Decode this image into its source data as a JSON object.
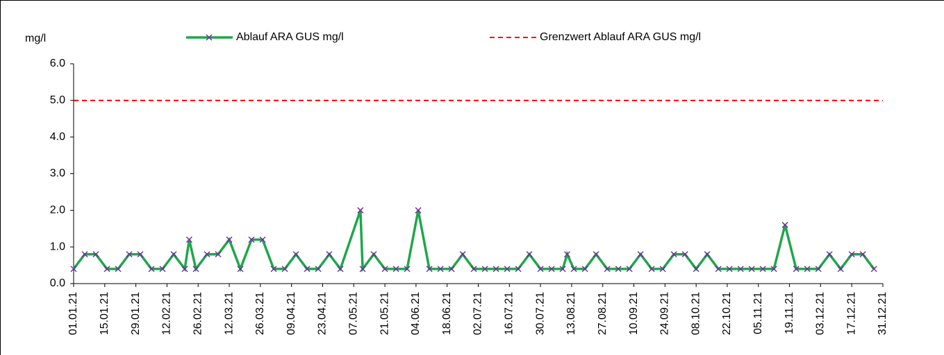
{
  "chart_data": {
    "type": "line",
    "ylabel": "mg/l",
    "xlim": [
      "01.01.21",
      "31.12.21"
    ],
    "xticks": [
      "01.01.21",
      "15.01.21",
      "29.01.21",
      "12.02.21",
      "26.02.21",
      "12.03.21",
      "26.03.21",
      "09.04.21",
      "23.04.21",
      "07.05.21",
      "21.05.21",
      "04.06.21",
      "18.06.21",
      "02.07.21",
      "16.07.21",
      "30.07.21",
      "13.08.21",
      "27.08.21",
      "10.09.21",
      "24.09.21",
      "08.10.21",
      "22.10.21",
      "05.11.21",
      "19.11.21",
      "03.12.21",
      "17.12.21",
      "31.12.21"
    ],
    "ylim": [
      0,
      6
    ],
    "yticks": [
      {
        "value": 0,
        "label": "0.0"
      },
      {
        "value": 1,
        "label": "1.0"
      },
      {
        "value": 2,
        "label": "2.0"
      },
      {
        "value": 3,
        "label": "3.0"
      },
      {
        "value": 4,
        "label": "4.0"
      },
      {
        "value": 5,
        "label": "5.0"
      },
      {
        "value": 6,
        "label": "6.0"
      }
    ],
    "series": [
      {
        "name": "Ablauf ARA GUS mg/l",
        "color": "#1fa64a",
        "marker_color": "#7030a0",
        "x": [
          "01.01.21",
          "06.01.21",
          "11.01.21",
          "16.01.21",
          "21.01.21",
          "26.01.21",
          "31.01.21",
          "05.02.21",
          "10.02.21",
          "15.02.21",
          "20.02.21",
          "22.02.21",
          "25.02.21",
          "02.03.21",
          "07.03.21",
          "12.03.21",
          "17.03.21",
          "22.03.21",
          "27.03.21",
          "01.04.21",
          "06.04.21",
          "11.04.21",
          "16.04.21",
          "21.04.21",
          "26.04.21",
          "01.05.21",
          "10.05.21",
          "11.05.21",
          "16.05.21",
          "21.05.21",
          "26.05.21",
          "31.05.21",
          "05.06.21",
          "10.06.21",
          "15.06.21",
          "20.06.21",
          "25.06.21",
          "30.06.21",
          "05.07.21",
          "10.07.21",
          "15.07.21",
          "20.07.21",
          "25.07.21",
          "30.07.21",
          "04.08.21",
          "09.08.21",
          "11.08.21",
          "14.08.21",
          "19.08.21",
          "24.08.21",
          "29.08.21",
          "03.09.21",
          "08.09.21",
          "13.09.21",
          "18.09.21",
          "23.09.21",
          "28.09.21",
          "03.10.21",
          "08.10.21",
          "13.10.21",
          "18.10.21",
          "23.10.21",
          "28.10.21",
          "02.11.21",
          "07.11.21",
          "12.11.21",
          "17.11.21",
          "22.11.21",
          "27.11.21",
          "02.12.21",
          "07.12.21",
          "12.12.21",
          "17.12.21",
          "22.12.21",
          "27.12.21"
        ],
        "values": [
          0.4,
          0.8,
          0.8,
          0.4,
          0.4,
          0.8,
          0.8,
          0.4,
          0.4,
          0.8,
          0.4,
          1.2,
          0.4,
          0.8,
          0.8,
          1.2,
          0.4,
          1.2,
          1.2,
          0.4,
          0.4,
          0.8,
          0.4,
          0.4,
          0.8,
          0.4,
          2.0,
          0.4,
          0.8,
          0.4,
          0.4,
          0.4,
          2.0,
          0.4,
          0.4,
          0.4,
          0.8,
          0.4,
          0.4,
          0.4,
          0.4,
          0.4,
          0.8,
          0.4,
          0.4,
          0.4,
          0.8,
          0.4,
          0.4,
          0.8,
          0.4,
          0.4,
          0.4,
          0.8,
          0.4,
          0.4,
          0.8,
          0.8,
          0.4,
          0.8,
          0.4,
          0.4,
          0.4,
          0.4,
          0.4,
          0.4,
          1.6,
          0.4,
          0.4,
          0.4,
          0.8,
          0.4,
          0.8,
          0.8,
          0.4
        ]
      },
      {
        "name": "Grenzwert Ablauf ARA GUS mg/l",
        "color": "#ff0000",
        "dashed": true,
        "x": [
          "01.01.21",
          "31.12.21"
        ],
        "values": [
          5,
          5
        ]
      }
    ]
  }
}
